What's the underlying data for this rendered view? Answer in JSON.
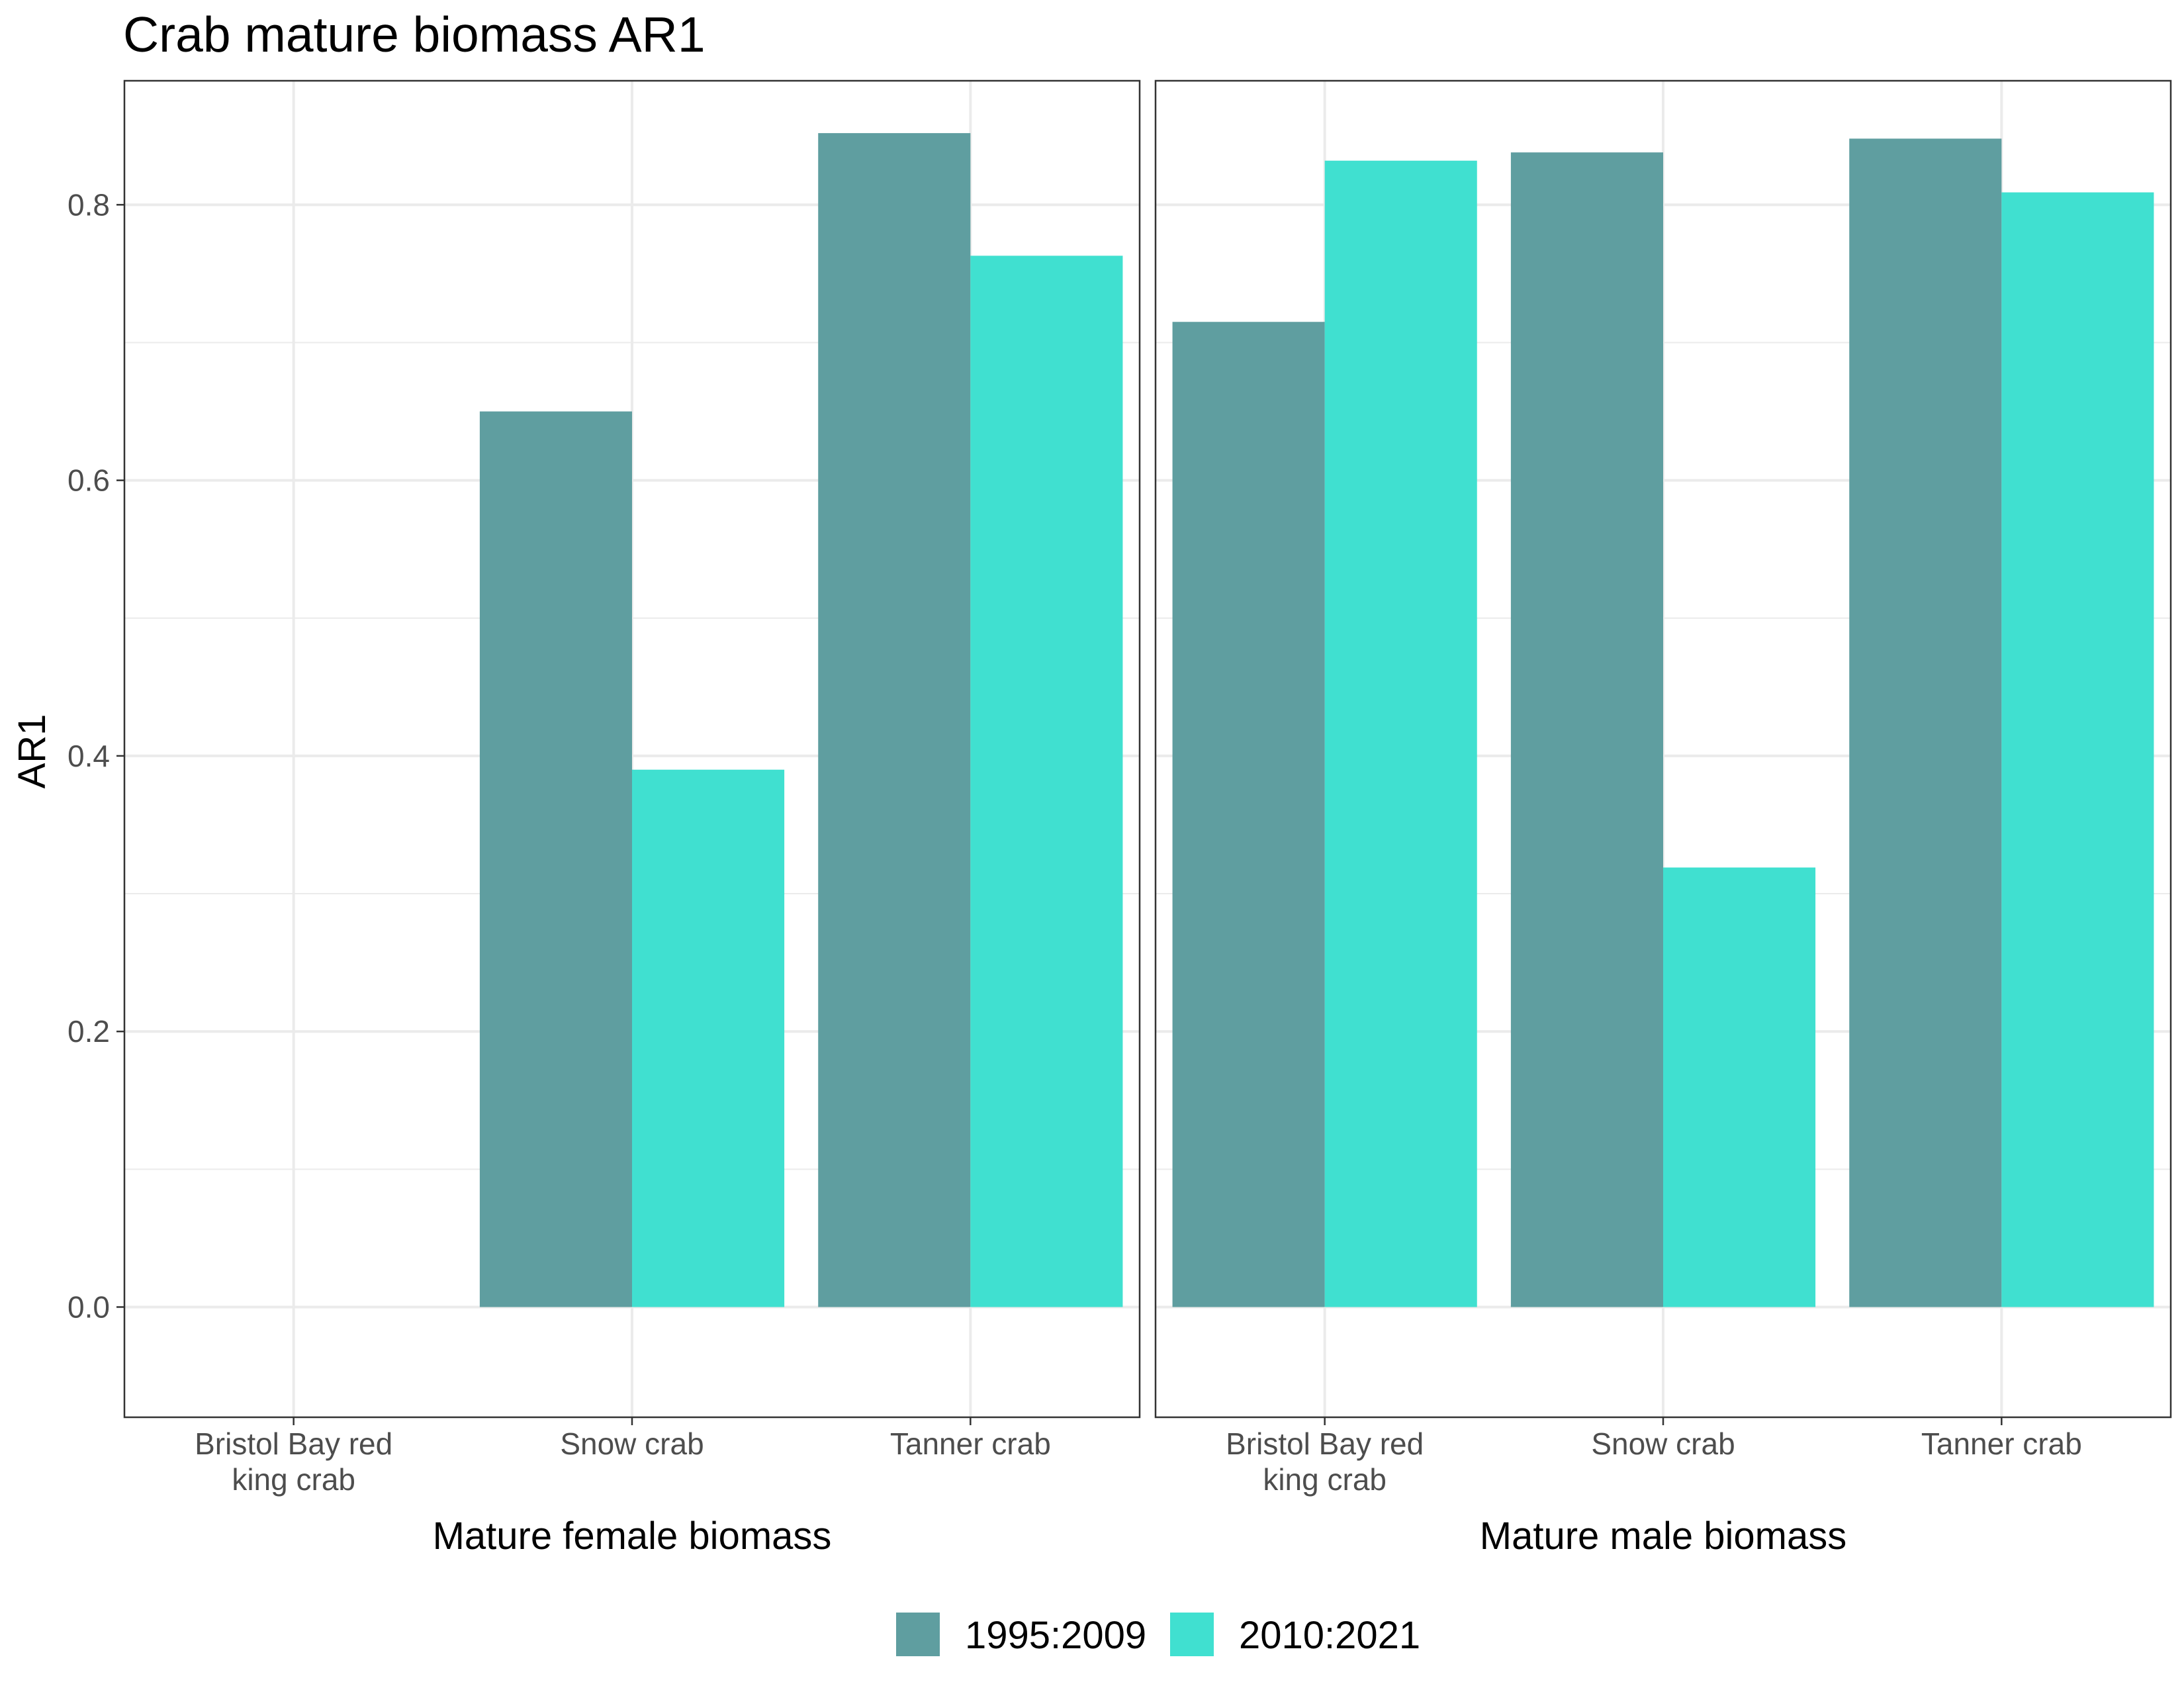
{
  "chart_data": {
    "type": "bar",
    "title": "Crab mature biomass AR1",
    "ylabel": "AR1",
    "ylim": [
      -0.08,
      0.89
    ],
    "yticks": [
      "0.0",
      "0.2",
      "0.4",
      "0.6",
      "0.8"
    ],
    "grid": true,
    "legend_position": "bottom",
    "series_colors": [
      "#5F9EA0",
      "#40E0D0"
    ],
    "legend": [
      "1995:2009",
      "2010:2021"
    ],
    "panels": [
      {
        "xlabel": "Mature female biomass",
        "categories": [
          "Bristol Bay red king crab",
          "Snow crab",
          "Tanner crab"
        ],
        "category_lines": [
          [
            "Bristol Bay red",
            "king crab"
          ],
          [
            "Snow crab"
          ],
          [
            "Tanner crab"
          ]
        ],
        "series": [
          {
            "name": "1995:2009",
            "values": [
              null,
              0.65,
              0.852
            ]
          },
          {
            "name": "2010:2021",
            "values": [
              null,
              0.39,
              0.763
            ]
          }
        ]
      },
      {
        "xlabel": "Mature male biomass",
        "categories": [
          "Bristol Bay red king crab",
          "Snow crab",
          "Tanner crab"
        ],
        "category_lines": [
          [
            "Bristol Bay red",
            "king crab"
          ],
          [
            "Snow crab"
          ],
          [
            "Tanner crab"
          ]
        ],
        "series": [
          {
            "name": "1995:2009",
            "values": [
              0.715,
              0.838,
              0.848
            ]
          },
          {
            "name": "2010:2021",
            "values": [
              0.832,
              0.319,
              0.809
            ]
          }
        ]
      }
    ]
  }
}
